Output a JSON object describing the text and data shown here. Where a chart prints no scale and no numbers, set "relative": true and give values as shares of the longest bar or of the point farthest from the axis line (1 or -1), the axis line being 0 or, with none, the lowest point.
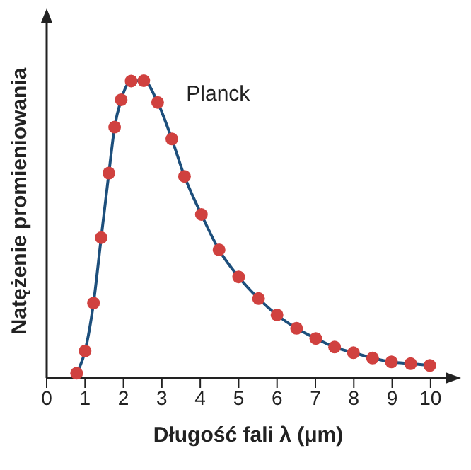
{
  "chart_data": {
    "type": "line",
    "relative": true,
    "xlabel": "Długość fali λ (μm)",
    "ylabel": "Natężenie promieniowania",
    "xlim": [
      0,
      10.5
    ],
    "xticks": [
      0,
      1,
      2,
      3,
      4,
      5,
      6,
      7,
      8,
      9,
      10
    ],
    "marker": "circle",
    "grid": false,
    "legend": false,
    "x": [
      0.78,
      1.0,
      1.22,
      1.42,
      1.62,
      1.77,
      1.94,
      2.2,
      2.53,
      2.89,
      3.26,
      3.59,
      4.03,
      4.49,
      5.0,
      5.52,
      6.0,
      6.51,
      7.01,
      7.5,
      7.99,
      8.49,
      8.98,
      9.48,
      9.98
    ],
    "series": [
      {
        "name": "Planck",
        "color": "#1d4f7c",
        "colors": [
          "#d0413f",
          "#d0413f",
          "#d0413f",
          "#d0413f",
          "#d0413f",
          "#d0413f",
          "#d0413f",
          "#d0413f",
          "#d0413f",
          "#d0413f",
          "#d0413f",
          "#d0413f",
          "#d0413f",
          "#d0413f",
          "#d0413f",
          "#d0413f",
          "#d0413f",
          "#d0413f",
          "#d0413f",
          "#d0413f",
          "#d0413f",
          "#d0413f",
          "#d0413f",
          "#d0413f",
          "#d0413f"
        ],
        "values": [
          0.016,
          0.091,
          0.252,
          0.472,
          0.689,
          0.844,
          0.936,
          0.999,
          1.0,
          0.927,
          0.804,
          0.678,
          0.55,
          0.431,
          0.34,
          0.267,
          0.212,
          0.167,
          0.133,
          0.104,
          0.085,
          0.067,
          0.054,
          0.048,
          0.042
        ]
      }
    ]
  }
}
